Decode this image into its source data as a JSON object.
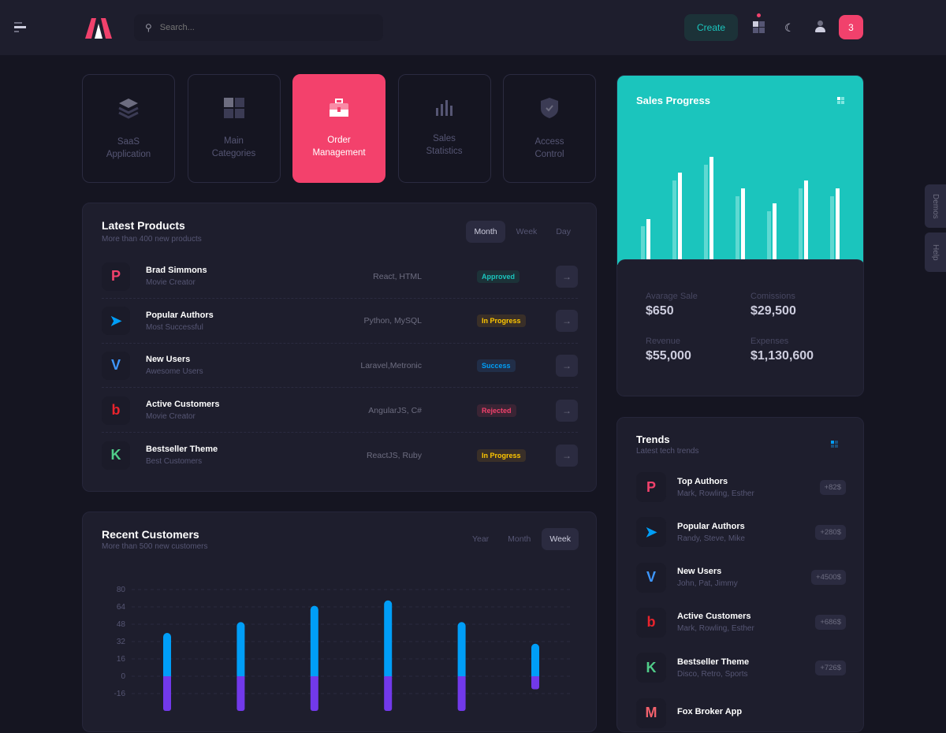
{
  "header": {
    "search_placeholder": "Search...",
    "create_label": "Create",
    "notification_count": "3"
  },
  "tiles": [
    {
      "label": "SaaS\nApplication",
      "l1": "SaaS",
      "l2": "Application",
      "icon": "layers-icon"
    },
    {
      "l1": "Main",
      "l2": "Categories",
      "icon": "grid-icon"
    },
    {
      "l1": "Order",
      "l2": "Management",
      "icon": "briefcase-icon",
      "active": true
    },
    {
      "l1": "Sales",
      "l2": "Statistics",
      "icon": "bar-chart-icon"
    },
    {
      "l1": "Access",
      "l2": "Control",
      "icon": "shield-check-icon"
    }
  ],
  "latest_products": {
    "title": "Latest Products",
    "subtitle": "More than 400 new products",
    "tabs": [
      "Month",
      "Week",
      "Day"
    ],
    "active_tab": "Month",
    "rows": [
      {
        "name": "Brad Simmons",
        "sub": "Movie Creator",
        "tech": "React, HTML",
        "status": "Approved",
        "logo": "P",
        "color": "#f1416c"
      },
      {
        "name": "Popular Authors",
        "sub": "Most Successful",
        "tech": "Python, MySQL",
        "status": "In Progress",
        "logo": "➤",
        "color": "#009ef7"
      },
      {
        "name": "New Users",
        "sub": "Awesome Users",
        "tech": "Laravel,Metronic",
        "status": "Success",
        "logo": "V",
        "color": "#3e97ff"
      },
      {
        "name": "Active Customers",
        "sub": "Movie Creator",
        "tech": "AngularJS, C#",
        "status": "Rejected",
        "logo": "b",
        "color": "#e8232c"
      },
      {
        "name": "Bestseller Theme",
        "sub": "Best Customers",
        "tech": "ReactJS, Ruby",
        "status": "In Progress",
        "logo": "K",
        "color": "#50cd89"
      }
    ]
  },
  "status_colors": {
    "Approved": [
      "#1c3238",
      "#1bc5bd"
    ],
    "In Progress": [
      "#392f28",
      "#ffc700"
    ],
    "Success": [
      "#212e48",
      "#009ef7"
    ],
    "Rejected": [
      "#3a2434",
      "#f1416c"
    ]
  },
  "recent_customers": {
    "title": "Recent Customers",
    "subtitle": "More than 500 new customers",
    "tabs": [
      "Year",
      "Month",
      "Week"
    ],
    "active_tab": "Week"
  },
  "chart_data": [
    {
      "type": "bar",
      "yticks": [
        80,
        64,
        48,
        32,
        16,
        0,
        -16
      ],
      "ylim": [
        -32,
        80
      ],
      "grid": true,
      "series": [
        {
          "color": "#009ef7",
          "values": [
            40,
            50,
            65,
            70,
            50,
            30
          ]
        },
        {
          "color": "#7239ea",
          "values": [
            -32,
            -32,
            -32,
            -32,
            -32,
            -12
          ]
        }
      ]
    },
    {
      "type": "bar",
      "title": "Sales Progress",
      "series": [
        {
          "color": "#5fd9d2",
          "values": [
            43,
            101,
            121,
            81,
            62,
            91,
            81
          ]
        },
        {
          "color": "#ffffff",
          "values": [
            52,
            111,
            131,
            91,
            72,
            101,
            91
          ]
        }
      ]
    }
  ],
  "sales_progress": {
    "title": "Sales Progress",
    "stats": [
      {
        "label": "Avarage Sale",
        "value": "$650"
      },
      {
        "label": "Comissions",
        "value": "$29,500"
      },
      {
        "label": "Revenue",
        "value": "$55,000"
      },
      {
        "label": "Expenses",
        "value": "$1,130,600"
      }
    ],
    "bg": "#1bc5bd"
  },
  "trends": {
    "title": "Trends",
    "subtitle": "Latest tech trends",
    "rows": [
      {
        "name": "Top Authors",
        "sub": "Mark, Rowling, Esther",
        "value": "+82$",
        "logo": "P",
        "color": "#f1416c"
      },
      {
        "name": "Popular Authors",
        "sub": "Randy, Steve, Mike",
        "value": "+280$",
        "logo": "➤",
        "color": "#009ef7"
      },
      {
        "name": "New Users",
        "sub": "John, Pat, Jimmy",
        "value": "+4500$",
        "logo": "V",
        "color": "#3e97ff"
      },
      {
        "name": "Active Customers",
        "sub": "Mark, Rowling, Esther",
        "value": "+686$",
        "logo": "b",
        "color": "#e8232c"
      },
      {
        "name": "Bestseller Theme",
        "sub": "Disco, Retro, Sports",
        "value": "+726$",
        "logo": "K",
        "color": "#50cd89"
      },
      {
        "name": "Fox Broker App",
        "sub": "",
        "value": "",
        "logo": "M",
        "color": "#f1616c"
      }
    ]
  },
  "side_tabs": [
    "Demos",
    "Help"
  ]
}
